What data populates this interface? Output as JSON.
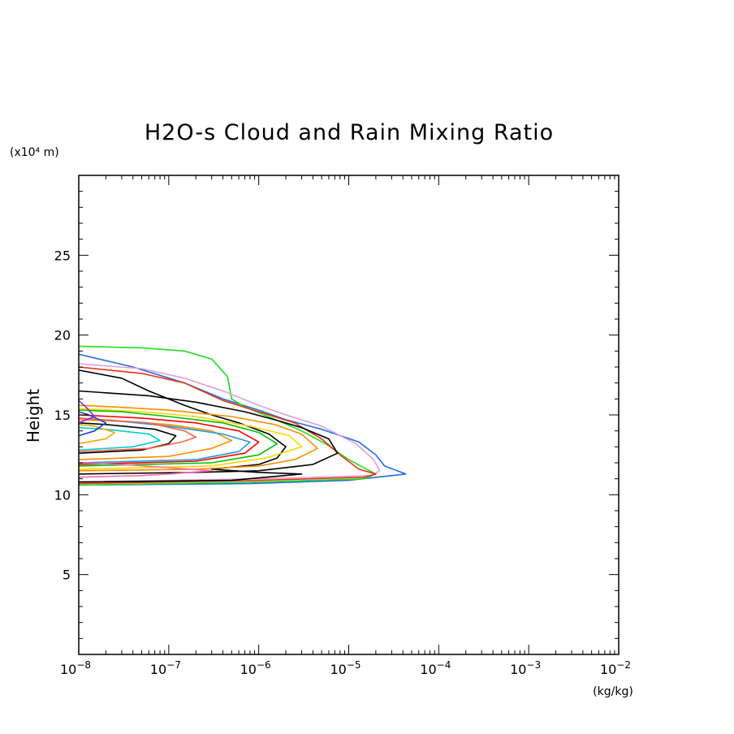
{
  "chart_data": {
    "type": "line",
    "title": "H2O-s Cloud and Rain Mixing Ratio",
    "xlabel": "(kg/kg)",
    "ylabel": "Height",
    "y_unit_label": "(x10⁴ m)",
    "xscale": "log",
    "xlim": [
      1e-08,
      0.01
    ],
    "ylim": [
      0,
      30
    ],
    "x_ticks": [
      {
        "base": "10",
        "exp": "−8"
      },
      {
        "base": "10",
        "exp": "−7"
      },
      {
        "base": "10",
        "exp": "−6"
      },
      {
        "base": "10",
        "exp": "−5"
      },
      {
        "base": "10",
        "exp": "−4"
      },
      {
        "base": "10",
        "exp": "−3"
      },
      {
        "base": "10",
        "exp": "−2"
      }
    ],
    "y_ticks": [
      "5",
      "10",
      "15",
      "20",
      "25"
    ],
    "grid": false,
    "legend": "none",
    "series": [
      {
        "color": "#1f6fe0",
        "points": [
          [
            1e-08,
            10.6
          ],
          [
            8e-07,
            10.7
          ],
          [
            1e-05,
            10.9
          ],
          [
            4.3e-05,
            11.3
          ],
          [
            2.5e-05,
            11.8
          ],
          [
            2e-05,
            12.5
          ],
          [
            1.3e-05,
            13.3
          ],
          [
            5e-06,
            14.1
          ],
          [
            2e-06,
            14.7
          ],
          [
            1e-06,
            15.3
          ],
          [
            4e-07,
            16.0
          ],
          [
            1.5e-07,
            17.0
          ],
          [
            4e-08,
            18.0
          ],
          [
            1e-08,
            18.8
          ]
        ]
      },
      {
        "color": "#22dd22",
        "points": [
          [
            1e-08,
            10.6
          ],
          [
            1e-06,
            10.8
          ],
          [
            1.5e-05,
            11.0
          ],
          [
            2e-05,
            11.3
          ],
          [
            1e-05,
            12.2
          ],
          [
            5.5e-06,
            13.2
          ],
          [
            3e-06,
            14.0
          ],
          [
            1.4e-06,
            14.8
          ],
          [
            7e-07,
            15.5
          ],
          [
            5e-07,
            16.0
          ],
          [
            4.5e-07,
            17.4
          ],
          [
            3e-07,
            18.5
          ],
          [
            1.5e-07,
            19.0
          ],
          [
            5e-08,
            19.2
          ],
          [
            1e-08,
            19.3
          ]
        ]
      },
      {
        "color": "#dda0dd",
        "points": [
          [
            1e-08,
            10.8
          ],
          [
            1e-06,
            11.0
          ],
          [
            1.8e-05,
            11.2
          ],
          [
            2.2e-05,
            11.5
          ],
          [
            1.9e-05,
            12.2
          ],
          [
            1.2e-05,
            13.2
          ],
          [
            5e-06,
            14.3
          ],
          [
            2e-06,
            15.0
          ],
          [
            1e-06,
            15.6
          ],
          [
            4e-07,
            16.5
          ],
          [
            1.5e-07,
            17.3
          ],
          [
            5e-08,
            17.9
          ],
          [
            1e-08,
            18.2
          ]
        ]
      },
      {
        "color": "#ee3311",
        "points": [
          [
            1e-08,
            10.7
          ],
          [
            1e-06,
            10.9
          ],
          [
            1.5e-05,
            11.1
          ],
          [
            2e-05,
            11.3
          ],
          [
            1.3e-05,
            11.6
          ],
          [
            8e-06,
            12.5
          ],
          [
            5e-06,
            13.5
          ],
          [
            2.5e-06,
            14.5
          ],
          [
            1e-06,
            15.2
          ],
          [
            4e-07,
            15.9
          ],
          [
            1.5e-07,
            17.0
          ],
          [
            5e-08,
            17.6
          ],
          [
            1e-08,
            18.0
          ]
        ]
      },
      {
        "color": "#000000",
        "points": [
          [
            1e-08,
            10.8
          ],
          [
            5e-07,
            10.9
          ],
          [
            3e-06,
            11.3
          ],
          [
            1e-06,
            11.4
          ],
          [
            3e-07,
            11.6
          ],
          [
            1e-06,
            11.9
          ],
          [
            1.6e-06,
            12.3
          ],
          [
            2e-06,
            13.0
          ],
          [
            1.3e-06,
            13.8
          ],
          [
            6e-07,
            14.5
          ],
          [
            3e-07,
            15.0
          ],
          [
            1.5e-07,
            15.6
          ],
          [
            6e-08,
            16.5
          ],
          [
            3e-08,
            17.3
          ],
          [
            1e-08,
            17.8
          ]
        ]
      },
      {
        "color": "#000000",
        "points": [
          [
            1e-08,
            11.3
          ],
          [
            2e-07,
            11.4
          ],
          [
            1e-06,
            11.5
          ],
          [
            4e-06,
            11.9
          ],
          [
            7.5e-06,
            12.6
          ],
          [
            6e-06,
            13.5
          ],
          [
            3e-06,
            14.2
          ],
          [
            1.5e-06,
            14.7
          ],
          [
            7e-07,
            15.2
          ],
          [
            2e-07,
            15.8
          ],
          [
            6e-08,
            16.2
          ],
          [
            1e-08,
            16.5
          ]
        ]
      },
      {
        "color": "#ff8c00",
        "points": [
          [
            1e-08,
            11.5
          ],
          [
            2e-07,
            11.6
          ],
          [
            1e-06,
            11.8
          ],
          [
            2.5e-06,
            12.2
          ],
          [
            4.5e-06,
            12.9
          ],
          [
            3e-06,
            13.8
          ],
          [
            1.5e-06,
            14.4
          ],
          [
            5e-07,
            14.9
          ],
          [
            1e-07,
            15.3
          ],
          [
            2.5e-08,
            15.5
          ],
          [
            1e-08,
            15.6
          ]
        ]
      },
      {
        "color": "#ffd700",
        "points": [
          [
            1e-08,
            11.6
          ],
          [
            3e-07,
            11.8
          ],
          [
            1.2e-06,
            12.3
          ],
          [
            3e-06,
            13.0
          ],
          [
            2.2e-06,
            13.7
          ],
          [
            8e-07,
            14.3
          ],
          [
            2e-07,
            14.9
          ],
          [
            5e-08,
            15.2
          ],
          [
            1e-08,
            15.4
          ]
        ]
      },
      {
        "color": "#00c000",
        "points": [
          [
            1e-08,
            11.8
          ],
          [
            3e-07,
            12.0
          ],
          [
            1e-06,
            12.5
          ],
          [
            1.6e-06,
            13.2
          ],
          [
            1e-06,
            13.9
          ],
          [
            4e-07,
            14.5
          ],
          [
            1e-07,
            14.9
          ],
          [
            3e-08,
            15.2
          ],
          [
            1e-08,
            15.3
          ]
        ]
      },
      {
        "color": "#ff0000",
        "points": [
          [
            1e-08,
            11.9
          ],
          [
            2e-07,
            12.1
          ],
          [
            7e-07,
            12.6
          ],
          [
            1e-06,
            13.3
          ],
          [
            6e-07,
            14.0
          ],
          [
            2e-07,
            14.5
          ],
          [
            5e-08,
            14.8
          ],
          [
            1e-08,
            15.0
          ]
        ]
      },
      {
        "color": "#ff8c00",
        "points": [
          [
            1e-08,
            12.2
          ],
          [
            1e-07,
            12.4
          ],
          [
            3e-07,
            12.9
          ],
          [
            5e-07,
            13.4
          ],
          [
            3e-07,
            14.0
          ],
          [
            1e-07,
            14.4
          ],
          [
            3e-08,
            14.6
          ],
          [
            1e-08,
            14.7
          ]
        ]
      },
      {
        "color": "#1a9be0",
        "points": [
          [
            1e-08,
            12.0
          ],
          [
            2e-07,
            12.2
          ],
          [
            6e-07,
            12.7
          ],
          [
            8e-07,
            13.3
          ],
          [
            4e-07,
            13.8
          ],
          [
            1e-07,
            14.3
          ],
          [
            3e-08,
            14.6
          ],
          [
            1e-08,
            14.8
          ]
        ]
      },
      {
        "color": "#000000",
        "points": [
          [
            1e-08,
            12.6
          ],
          [
            5e-08,
            12.8
          ],
          [
            1e-07,
            13.2
          ],
          [
            1.2e-07,
            13.7
          ],
          [
            7e-08,
            14.1
          ],
          [
            2e-08,
            14.4
          ],
          [
            1e-08,
            14.5
          ]
        ]
      },
      {
        "color": "#ff6347",
        "points": [
          [
            1e-08,
            12.7
          ],
          [
            6e-08,
            12.9
          ],
          [
            1.4e-07,
            13.3
          ],
          [
            2e-07,
            13.6
          ],
          [
            1.5e-07,
            14.0
          ],
          [
            6e-08,
            14.5
          ],
          [
            1e-08,
            14.8
          ]
        ]
      },
      {
        "color": "#00ced1",
        "points": [
          [
            1e-08,
            12.8
          ],
          [
            4e-08,
            13.0
          ],
          [
            8e-08,
            13.4
          ],
          [
            6e-08,
            13.8
          ],
          [
            2e-08,
            14.1
          ],
          [
            1e-08,
            14.2
          ]
        ]
      },
      {
        "color": "#ffa500",
        "points": [
          [
            1e-08,
            13.2
          ],
          [
            2e-08,
            13.5
          ],
          [
            2.5e-08,
            13.9
          ],
          [
            1.5e-08,
            14.3
          ],
          [
            1e-08,
            14.4
          ]
        ]
      },
      {
        "color": "#1f3fd0",
        "points": [
          [
            1e-08,
            13.7
          ],
          [
            1.5e-08,
            14.0
          ],
          [
            2e-08,
            14.5
          ],
          [
            1.3e-08,
            15.0
          ],
          [
            1e-08,
            15.2
          ]
        ]
      },
      {
        "color": "#8a2be2",
        "points": [
          [
            1e-08,
            14.5
          ],
          [
            1.5e-08,
            14.9
          ],
          [
            1.2e-08,
            15.5
          ],
          [
            1e-08,
            15.9
          ]
        ]
      },
      {
        "color": "#ff69b4",
        "points": [
          [
            1e-08,
            11.1
          ],
          [
            5e-08,
            11.2
          ],
          [
            1e-07,
            11.3
          ],
          [
            3e-07,
            11.5
          ],
          [
            1e-07,
            11.7
          ],
          [
            3e-08,
            11.9
          ],
          [
            1e-08,
            12.0
          ]
        ]
      }
    ]
  }
}
